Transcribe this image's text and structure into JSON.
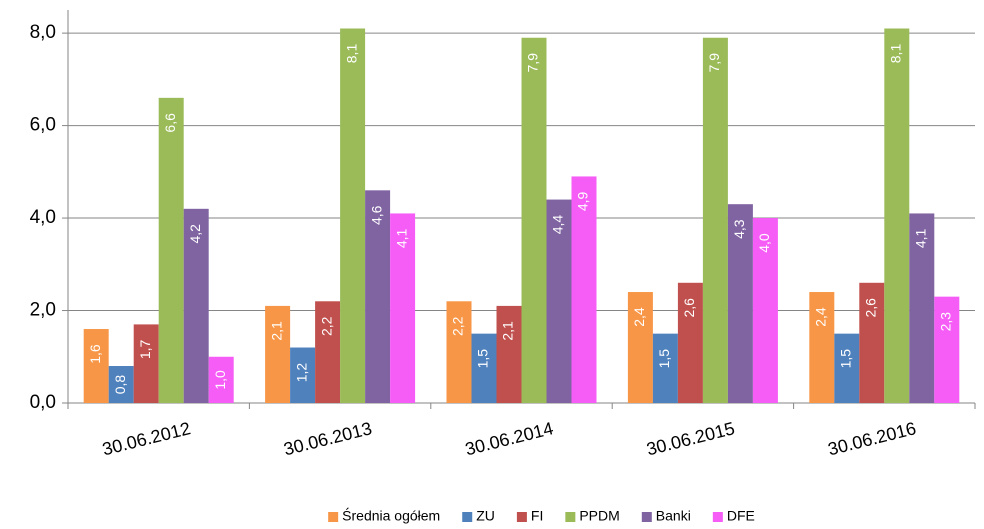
{
  "chart_data": {
    "type": "bar",
    "categories": [
      "30.06.2012",
      "30.06.2013",
      "30.06.2014",
      "30.06.2015",
      "30.06.2016"
    ],
    "series": [
      {
        "name": "Średnia ogółem",
        "color": "#f79646",
        "values": [
          1.6,
          2.1,
          2.2,
          2.4,
          2.4
        ],
        "value_labels": [
          "1,6",
          "2,1",
          "2,2",
          "2,4",
          "2,4"
        ]
      },
      {
        "name": "ZU",
        "color": "#4f81bd",
        "values": [
          0.8,
          1.2,
          1.5,
          1.5,
          1.5
        ],
        "value_labels": [
          "0,8",
          "1,2",
          "1,5",
          "1,5",
          "1,5"
        ]
      },
      {
        "name": "FI",
        "color": "#c0504d",
        "values": [
          1.7,
          2.2,
          2.1,
          2.6,
          2.6
        ],
        "value_labels": [
          "1,7",
          "2,2",
          "2,1",
          "2,6",
          "2,6"
        ]
      },
      {
        "name": "PPDM",
        "color": "#9bbb59",
        "values": [
          6.6,
          8.1,
          7.9,
          7.9,
          8.1
        ],
        "value_labels": [
          "6,6",
          "8,1",
          "7,9",
          "7,9",
          "8,1"
        ]
      },
      {
        "name": "Banki",
        "color": "#8064a2",
        "values": [
          4.2,
          4.6,
          4.4,
          4.3,
          4.1
        ],
        "value_labels": [
          "4,2",
          "4,6",
          "4,4",
          "4,3",
          "4,1"
        ]
      },
      {
        "name": "DFE",
        "color": "#f65cf6",
        "values": [
          1.0,
          4.1,
          4.9,
          4.0,
          2.3
        ],
        "value_labels": [
          "1,0",
          "4,1",
          "4,9",
          "4,0",
          "2,3"
        ]
      }
    ],
    "ylim": [
      0,
      8.5
    ],
    "yticks": [
      {
        "value": 0,
        "label": "0,0"
      },
      {
        "value": 2,
        "label": "2,0"
      },
      {
        "value": 4,
        "label": "4,0"
      },
      {
        "value": 6,
        "label": "6,0"
      },
      {
        "value": 8,
        "label": "8,0"
      }
    ],
    "grid": true,
    "legend": "bottom"
  }
}
